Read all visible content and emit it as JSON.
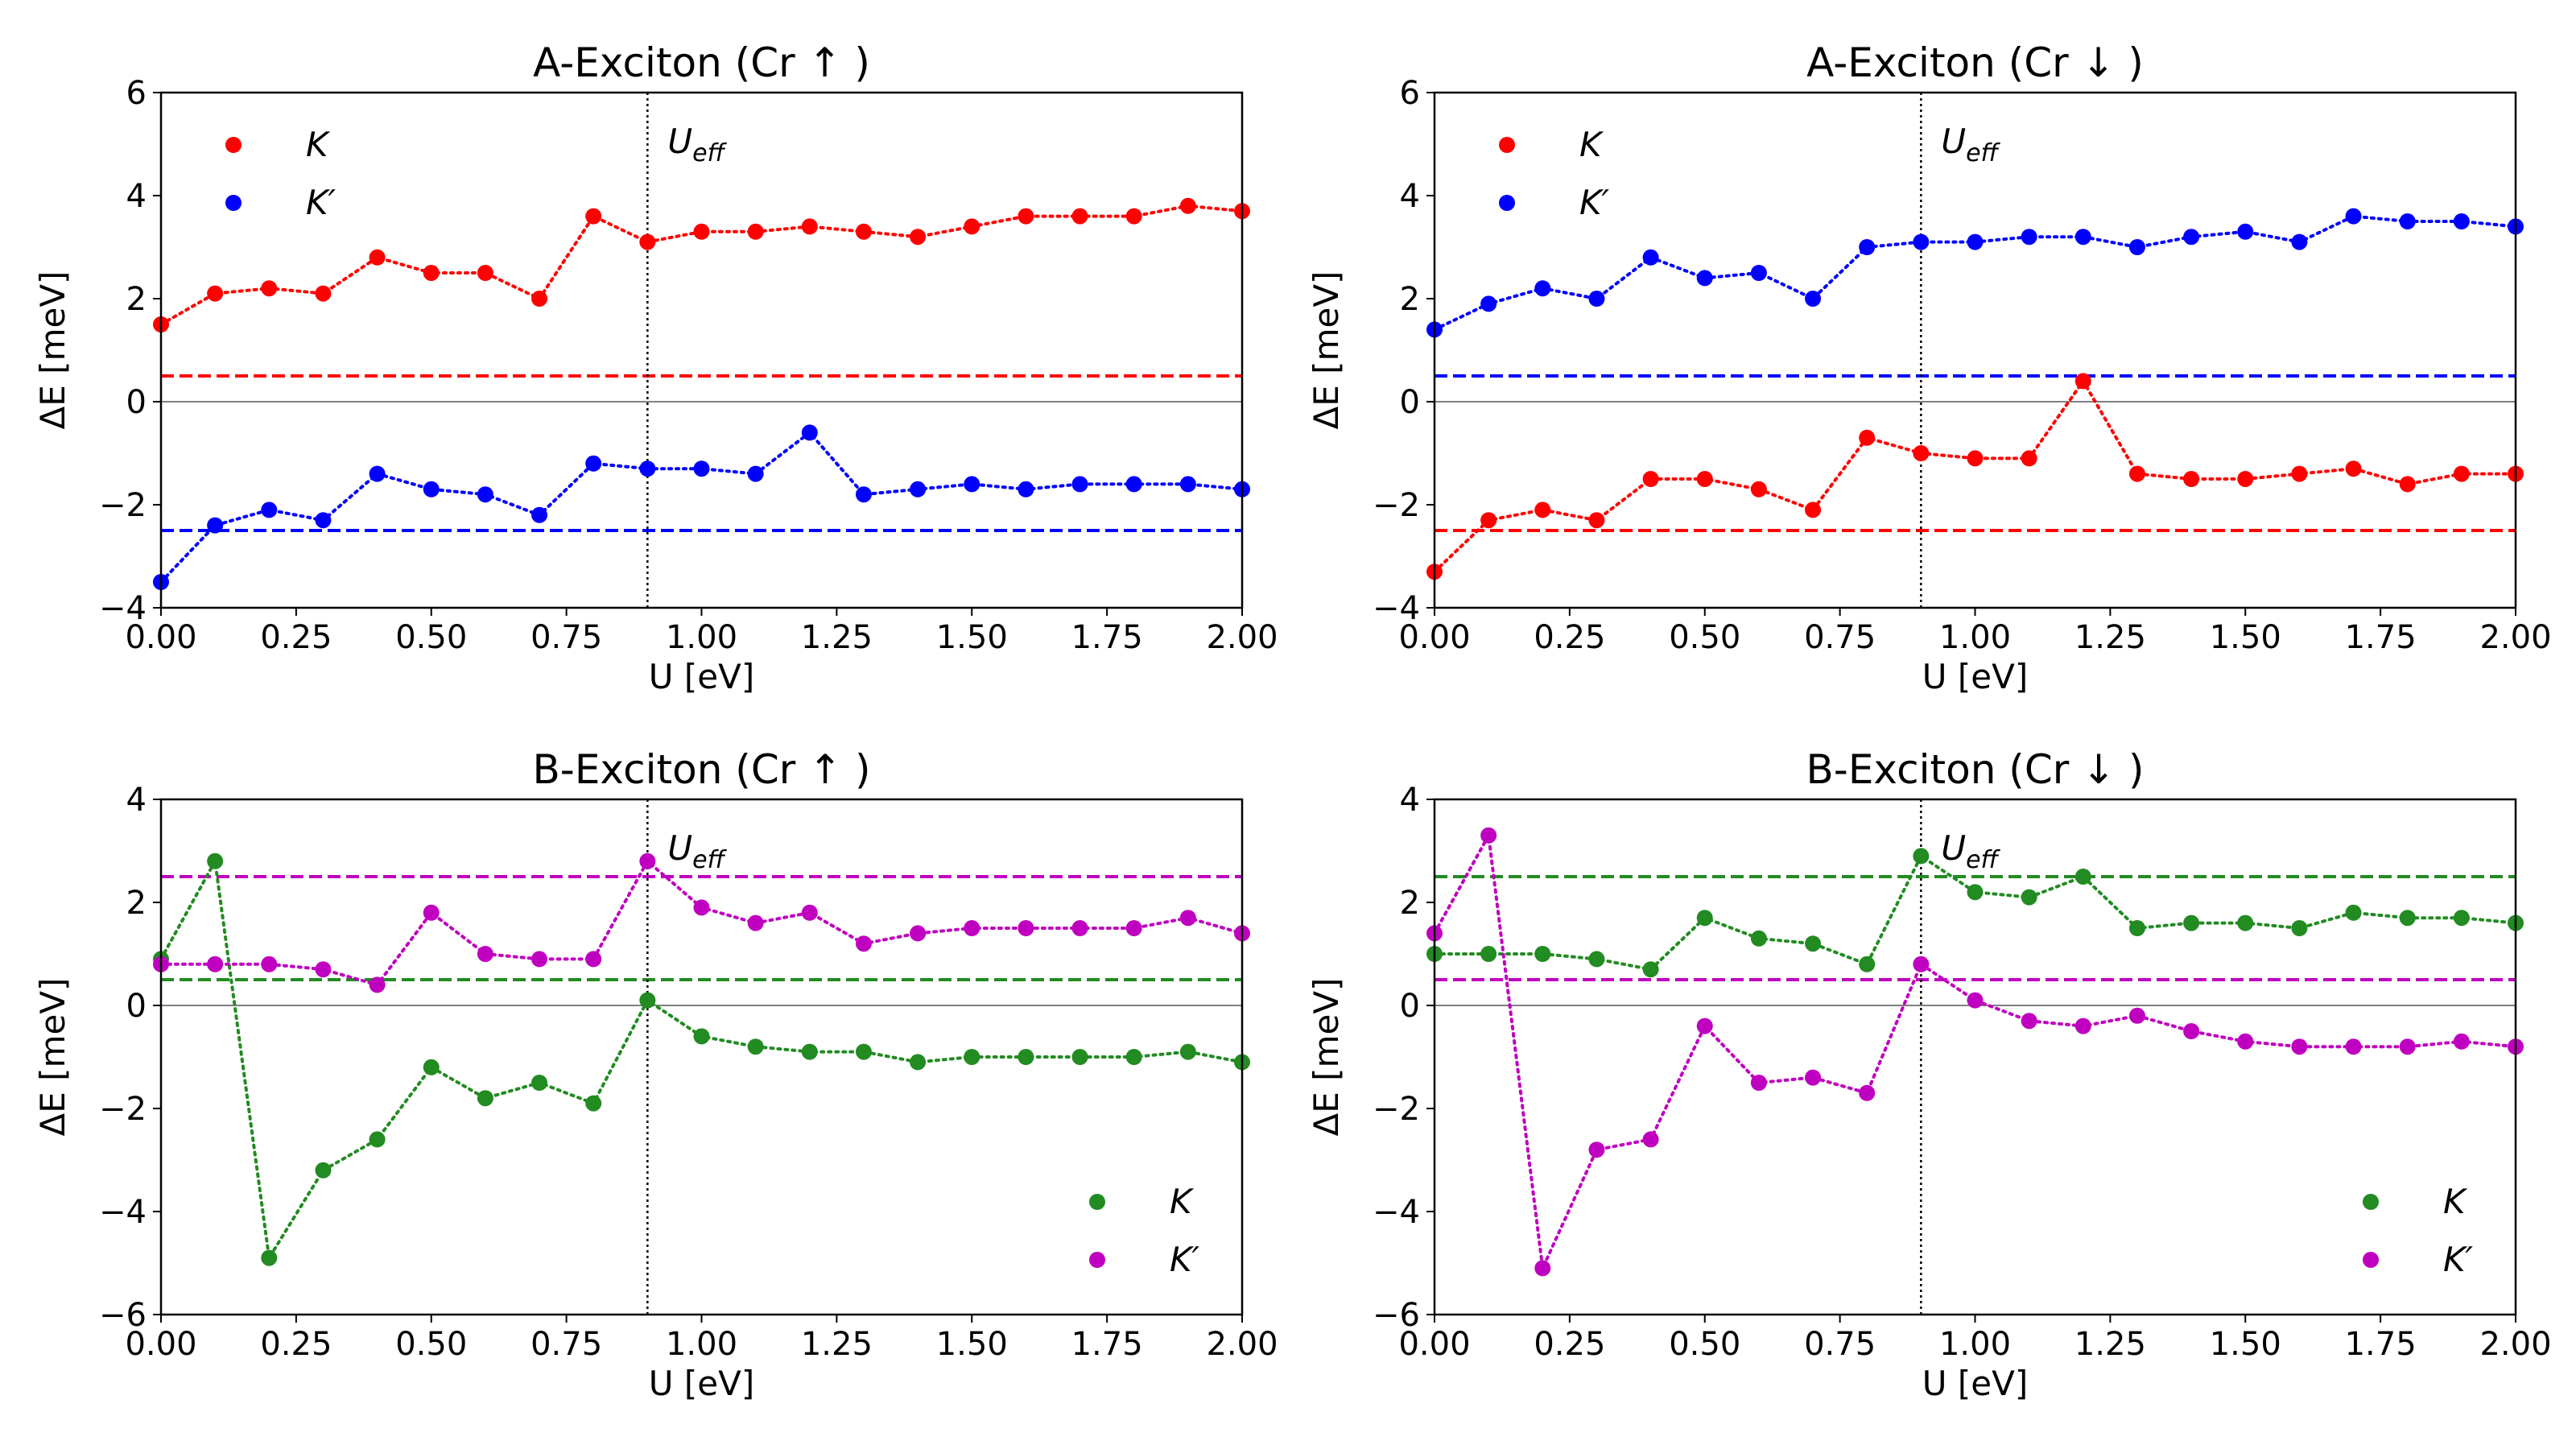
{
  "chart_data": [
    {
      "type": "line",
      "title": "A-Exciton (Cr ↑ )",
      "xlabel": "U [eV]",
      "ylabel": "ΔE [meV]",
      "xlim": [
        0,
        2
      ],
      "ylim": [
        -4,
        6
      ],
      "xticks": [
        0,
        0.25,
        0.5,
        0.75,
        1.0,
        1.25,
        1.5,
        1.75,
        2.0
      ],
      "xtick_labels": [
        "0.00",
        "0.25",
        "0.50",
        "0.75",
        "1.00",
        "1.25",
        "1.50",
        "1.75",
        "2.00"
      ],
      "yticks": [
        -4,
        -2,
        0,
        2,
        4,
        6
      ],
      "ytick_labels": [
        "−4",
        "−2",
        "0",
        "2",
        "4",
        "6"
      ],
      "x": [
        0,
        0.1,
        0.2,
        0.3,
        0.4,
        0.5,
        0.6,
        0.7,
        0.8,
        0.9,
        1.0,
        1.1,
        1.2,
        1.3,
        1.4,
        1.5,
        1.6,
        1.7,
        1.8,
        1.9,
        2.0
      ],
      "series": [
        {
          "name": "K",
          "color": "#ff0000",
          "values": [
            1.5,
            2.1,
            2.2,
            2.1,
            2.8,
            2.5,
            2.5,
            2.0,
            3.6,
            3.1,
            3.3,
            3.3,
            3.4,
            3.3,
            3.2,
            3.4,
            3.6,
            3.6,
            3.6,
            3.8,
            3.7
          ]
        },
        {
          "name": "K′",
          "color": "#0000ff",
          "values": [
            -3.5,
            -2.4,
            -2.1,
            -2.3,
            -1.4,
            -1.7,
            -1.8,
            -2.2,
            -1.2,
            -1.3,
            -1.3,
            -1.4,
            -0.6,
            -1.8,
            -1.7,
            -1.6,
            -1.7,
            -1.6,
            -1.6,
            -1.6,
            -1.7
          ]
        }
      ],
      "hlines": [
        {
          "y": 0.5,
          "color": "#ff0000"
        },
        {
          "y": -2.5,
          "color": "#0000ff"
        }
      ],
      "vline_x": 0.9,
      "vline_label": "U",
      "vline_label_sub": "eff",
      "legend_position": "top-left"
    },
    {
      "type": "line",
      "title": "A-Exciton (Cr ↓ )",
      "xlabel": "U [eV]",
      "ylabel": "ΔE [meV]",
      "xlim": [
        0,
        2
      ],
      "ylim": [
        -4,
        6
      ],
      "xticks": [
        0,
        0.25,
        0.5,
        0.75,
        1.0,
        1.25,
        1.5,
        1.75,
        2.0
      ],
      "xtick_labels": [
        "0.00",
        "0.25",
        "0.50",
        "0.75",
        "1.00",
        "1.25",
        "1.50",
        "1.75",
        "2.00"
      ],
      "yticks": [
        -4,
        -2,
        0,
        2,
        4,
        6
      ],
      "ytick_labels": [
        "−4",
        "−2",
        "0",
        "2",
        "4",
        "6"
      ],
      "x": [
        0,
        0.1,
        0.2,
        0.3,
        0.4,
        0.5,
        0.6,
        0.7,
        0.8,
        0.9,
        1.0,
        1.1,
        1.2,
        1.3,
        1.4,
        1.5,
        1.6,
        1.7,
        1.8,
        1.9,
        2.0
      ],
      "series": [
        {
          "name": "K",
          "color": "#ff0000",
          "values": [
            -3.3,
            -2.3,
            -2.1,
            -2.3,
            -1.5,
            -1.5,
            -1.7,
            -2.1,
            -0.7,
            -1.0,
            -1.1,
            -1.1,
            0.4,
            -1.4,
            -1.5,
            -1.5,
            -1.4,
            -1.3,
            -1.6,
            -1.4,
            -1.4
          ]
        },
        {
          "name": "K′",
          "color": "#0000ff",
          "values": [
            1.4,
            1.9,
            2.2,
            2.0,
            2.8,
            2.4,
            2.5,
            2.0,
            3.0,
            3.1,
            3.1,
            3.2,
            3.2,
            3.0,
            3.2,
            3.3,
            3.1,
            3.6,
            3.5,
            3.5,
            3.4
          ]
        }
      ],
      "hlines": [
        {
          "y": 0.5,
          "color": "#0000ff"
        },
        {
          "y": -2.5,
          "color": "#ff0000"
        }
      ],
      "vline_x": 0.9,
      "vline_label": "U",
      "vline_label_sub": "eff",
      "legend_position": "top-left"
    },
    {
      "type": "line",
      "title": "B-Exciton (Cr ↑ )",
      "xlabel": "U [eV]",
      "ylabel": "ΔE [meV]",
      "xlim": [
        0,
        2
      ],
      "ylim": [
        -6,
        4
      ],
      "xticks": [
        0,
        0.25,
        0.5,
        0.75,
        1.0,
        1.25,
        1.5,
        1.75,
        2.0
      ],
      "xtick_labels": [
        "0.00",
        "0.25",
        "0.50",
        "0.75",
        "1.00",
        "1.25",
        "1.50",
        "1.75",
        "2.00"
      ],
      "yticks": [
        -6,
        -4,
        -2,
        0,
        2,
        4
      ],
      "ytick_labels": [
        "−6",
        "−4",
        "−2",
        "0",
        "2",
        "4"
      ],
      "x": [
        0,
        0.1,
        0.2,
        0.3,
        0.4,
        0.5,
        0.6,
        0.7,
        0.8,
        0.9,
        1.0,
        1.1,
        1.2,
        1.3,
        1.4,
        1.5,
        1.6,
        1.7,
        1.8,
        1.9,
        2.0
      ],
      "series": [
        {
          "name": "K",
          "color": "#228b22",
          "values": [
            0.9,
            2.8,
            -4.9,
            -3.2,
            -2.6,
            -1.2,
            -1.8,
            -1.5,
            -1.9,
            0.1,
            -0.6,
            -0.8,
            -0.9,
            -0.9,
            -1.1,
            -1.0,
            -1.0,
            -1.0,
            -1.0,
            -0.9,
            -1.1
          ]
        },
        {
          "name": "K′",
          "color": "#c000c0",
          "values": [
            0.8,
            0.8,
            0.8,
            0.7,
            0.4,
            1.8,
            1.0,
            0.9,
            0.9,
            2.8,
            1.9,
            1.6,
            1.8,
            1.2,
            1.4,
            1.5,
            1.5,
            1.5,
            1.5,
            1.7,
            1.4
          ]
        }
      ],
      "hlines": [
        {
          "y": 0.5,
          "color": "#228b22"
        },
        {
          "y": 2.5,
          "color": "#c000c0"
        }
      ],
      "vline_x": 0.9,
      "vline_label": "U",
      "vline_label_sub": "eff",
      "legend_position": "bottom-right"
    },
    {
      "type": "line",
      "title": "B-Exciton (Cr ↓ )",
      "xlabel": "U [eV]",
      "ylabel": "ΔE [meV]",
      "xlim": [
        0,
        2
      ],
      "ylim": [
        -6,
        4
      ],
      "xticks": [
        0,
        0.25,
        0.5,
        0.75,
        1.0,
        1.25,
        1.5,
        1.75,
        2.0
      ],
      "xtick_labels": [
        "0.00",
        "0.25",
        "0.50",
        "0.75",
        "1.00",
        "1.25",
        "1.50",
        "1.75",
        "2.00"
      ],
      "yticks": [
        -6,
        -4,
        -2,
        0,
        2,
        4
      ],
      "ytick_labels": [
        "−6",
        "−4",
        "−2",
        "0",
        "2",
        "4"
      ],
      "x": [
        0,
        0.1,
        0.2,
        0.3,
        0.4,
        0.5,
        0.6,
        0.7,
        0.8,
        0.9,
        1.0,
        1.1,
        1.2,
        1.3,
        1.4,
        1.5,
        1.6,
        1.7,
        1.8,
        1.9,
        2.0
      ],
      "series": [
        {
          "name": "K",
          "color": "#228b22",
          "values": [
            1.0,
            1.0,
            1.0,
            0.9,
            0.7,
            1.7,
            1.3,
            1.2,
            0.8,
            2.9,
            2.2,
            2.1,
            2.5,
            1.5,
            1.6,
            1.6,
            1.5,
            1.8,
            1.7,
            1.7,
            1.6
          ]
        },
        {
          "name": "K′",
          "color": "#c000c0",
          "values": [
            1.4,
            3.3,
            -5.1,
            -2.8,
            -2.6,
            -0.4,
            -1.5,
            -1.4,
            -1.7,
            0.8,
            0.1,
            -0.3,
            -0.4,
            -0.2,
            -0.5,
            -0.7,
            -0.8,
            -0.8,
            -0.8,
            -0.7,
            -0.8
          ]
        }
      ],
      "hlines": [
        {
          "y": 2.5,
          "color": "#228b22"
        },
        {
          "y": 0.5,
          "color": "#c000c0"
        }
      ],
      "vline_x": 0.9,
      "vline_label": "U",
      "vline_label_sub": "eff",
      "legend_position": "bottom-right"
    }
  ]
}
